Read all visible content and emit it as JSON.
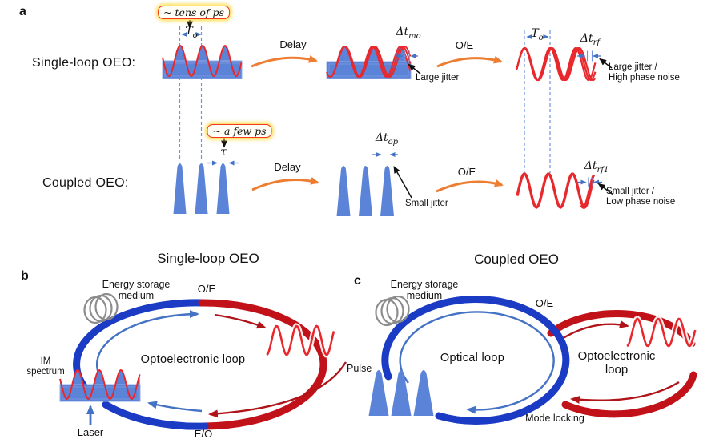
{
  "figure": {
    "panel_a": {
      "label": "a",
      "single_loop": {
        "name": "Single-loop OEO:",
        "timescale": "~ tens of ps",
        "period": {
          "main": "T",
          "sub": "o"
        },
        "delay": "Delay",
        "mo_jitter": {
          "main": "Δt",
          "sub": "mo"
        },
        "jitter_note": "Large jitter",
        "oe": "O/E",
        "period_rf": {
          "main": "T",
          "sub": "o"
        },
        "rf_jitter": {
          "main": "Δt",
          "sub": "rf"
        },
        "noise_line1": "Large jitter /",
        "noise_line2": "High phase noise"
      },
      "coupled": {
        "name": "Coupled OEO:",
        "timescale": "~ a few ps",
        "pulse_width": "τ",
        "delay": "Delay",
        "op_jitter": {
          "main": "Δt",
          "sub": "op"
        },
        "jitter_note": "Small jitter",
        "oe": "O/E",
        "rf_jitter": {
          "main": "Δt",
          "sub": "rf1"
        },
        "noise_line1": "Small jitter /",
        "noise_line2": "Low phase noise"
      }
    },
    "panel_b": {
      "label": "b",
      "title": "Single-loop OEO",
      "energy_storage_line1": "Energy storage",
      "energy_storage_line2": "medium",
      "oe": "O/E",
      "loop_label": "Optoelectronic loop",
      "im_line1": "IM",
      "im_line2": "spectrum",
      "laser": "Laser",
      "eo": "E/O"
    },
    "panel_c": {
      "label": "c",
      "title": "Coupled OEO",
      "energy_storage_line1": "Energy storage",
      "energy_storage_line2": "medium",
      "oe": "O/E",
      "optical_loop_label": "Optical loop",
      "oeo_loop_line1": "Optoelectronic",
      "oeo_loop_line2": "loop",
      "pulse": "Pulse",
      "mode_locking": "Mode locking"
    },
    "colors": {
      "pulse_blue": "#5b84d8",
      "signal_red": "#e8282d",
      "arrow_orange": "#ed7d31",
      "marker_blue": "#4472c4",
      "loop_blue": "#1b3bc4",
      "loop_red": "#c1121a",
      "coil_gray": "#8c8c8c",
      "callout_border": "#f4391e",
      "callout_glow": "#ffd83c"
    }
  }
}
